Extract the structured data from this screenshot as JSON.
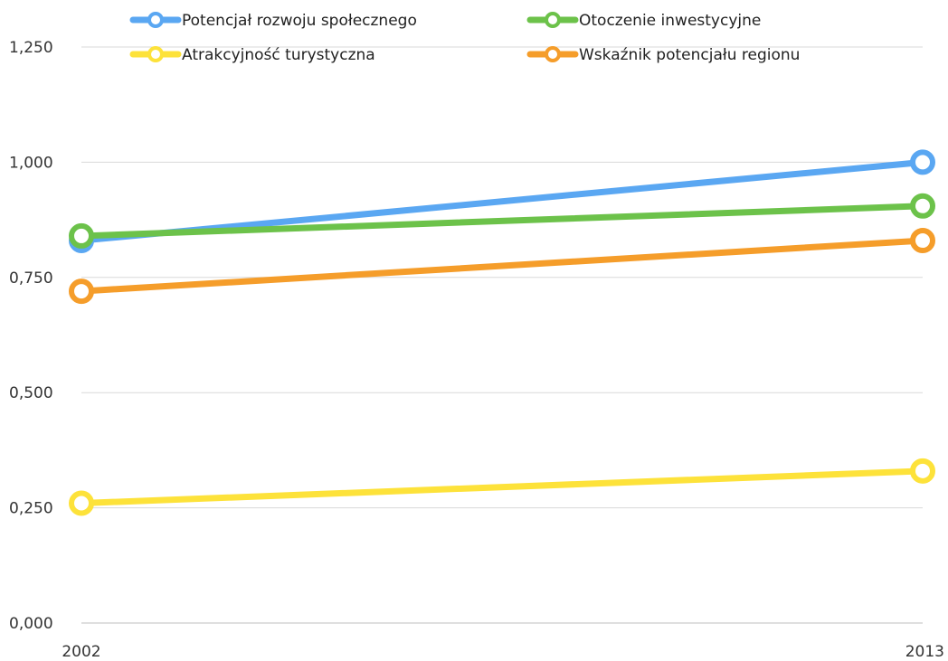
{
  "chart_data": {
    "type": "line",
    "title": "",
    "xlabel": "",
    "ylabel": "",
    "x": [
      "2002",
      "2013"
    ],
    "ylim": [
      0,
      1.25
    ],
    "yticks": [
      "0,000",
      "0,250",
      "0,500",
      "0,750",
      "1,000",
      "1,250"
    ],
    "grid": true,
    "legend_position": "top",
    "series": [
      {
        "name": "Potencjał rozwoju społecznego",
        "color": "#5aa7f2",
        "values": [
          0.83,
          1.0
        ]
      },
      {
        "name": "Otoczenie inwestycyjne",
        "color": "#6cc24a",
        "values": [
          0.84,
          0.905
        ]
      },
      {
        "name": "Atrakcyjność turystyczna",
        "color": "#fde23a",
        "values": [
          0.26,
          0.33
        ]
      },
      {
        "name": "Wskaźnik potencjału regionu",
        "color": "#f59d2a",
        "values": [
          0.72,
          0.83
        ]
      }
    ]
  }
}
